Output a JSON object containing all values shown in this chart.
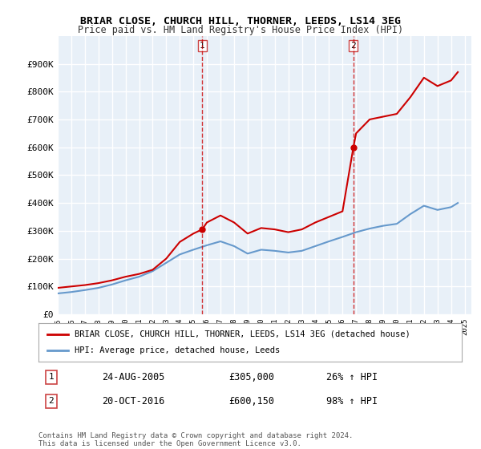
{
  "title1": "BRIAR CLOSE, CHURCH HILL, THORNER, LEEDS, LS14 3EG",
  "title2": "Price paid vs. HM Land Registry's House Price Index (HPI)",
  "xlabel": "",
  "ylabel": "",
  "ylim": [
    0,
    1000000
  ],
  "yticks": [
    0,
    100000,
    200000,
    300000,
    400000,
    500000,
    600000,
    700000,
    800000,
    900000
  ],
  "ytick_labels": [
    "£0",
    "£100K",
    "£200K",
    "£300K",
    "£400K",
    "£500K",
    "£600K",
    "£700K",
    "£800K",
    "£900K"
  ],
  "background_color": "#ffffff",
  "plot_bg_color": "#e8f0f8",
  "grid_color": "#ffffff",
  "red_line_color": "#cc0000",
  "blue_line_color": "#6699cc",
  "marker1_x": 2005.65,
  "marker1_y": 305000,
  "marker2_x": 2016.8,
  "marker2_y": 600150,
  "annotation1": [
    "1",
    "24-AUG-2005",
    "£305,000",
    "26% ↑ HPI"
  ],
  "annotation2": [
    "2",
    "20-OCT-2016",
    "£600,150",
    "98% ↑ HPI"
  ],
  "legend_label1": "BRIAR CLOSE, CHURCH HILL, THORNER, LEEDS, LS14 3EG (detached house)",
  "legend_label2": "HPI: Average price, detached house, Leeds",
  "footer": "Contains HM Land Registry data © Crown copyright and database right 2024.\nThis data is licensed under the Open Government Licence v3.0.",
  "xmin": 1995,
  "xmax": 2025.5,
  "red_hpi_x": [
    1995,
    1996,
    1997,
    1998,
    1999,
    2000,
    2001,
    2002,
    2003,
    2004,
    2005,
    2005.65,
    2006,
    2007,
    2008,
    2009,
    2010,
    2011,
    2012,
    2013,
    2014,
    2015,
    2016,
    2016.8,
    2017,
    2018,
    2019,
    2020,
    2021,
    2022,
    2023,
    2024,
    2024.5
  ],
  "red_hpi_y": [
    95000,
    100000,
    105000,
    112000,
    122000,
    135000,
    145000,
    160000,
    200000,
    260000,
    290000,
    305000,
    330000,
    355000,
    330000,
    290000,
    310000,
    305000,
    295000,
    305000,
    330000,
    350000,
    370000,
    600150,
    650000,
    700000,
    710000,
    720000,
    780000,
    850000,
    820000,
    840000,
    870000
  ],
  "blue_hpi_x": [
    1995,
    1996,
    1997,
    1998,
    1999,
    2000,
    2001,
    2002,
    2003,
    2004,
    2005,
    2006,
    2007,
    2008,
    2009,
    2010,
    2011,
    2012,
    2013,
    2014,
    2015,
    2016,
    2017,
    2018,
    2019,
    2020,
    2021,
    2022,
    2023,
    2024,
    2024.5
  ],
  "blue_hpi_y": [
    75000,
    80000,
    87000,
    95000,
    107000,
    122000,
    135000,
    155000,
    185000,
    215000,
    232000,
    248000,
    262000,
    245000,
    218000,
    232000,
    228000,
    222000,
    228000,
    245000,
    262000,
    278000,
    295000,
    308000,
    318000,
    325000,
    360000,
    390000,
    375000,
    385000,
    400000
  ]
}
